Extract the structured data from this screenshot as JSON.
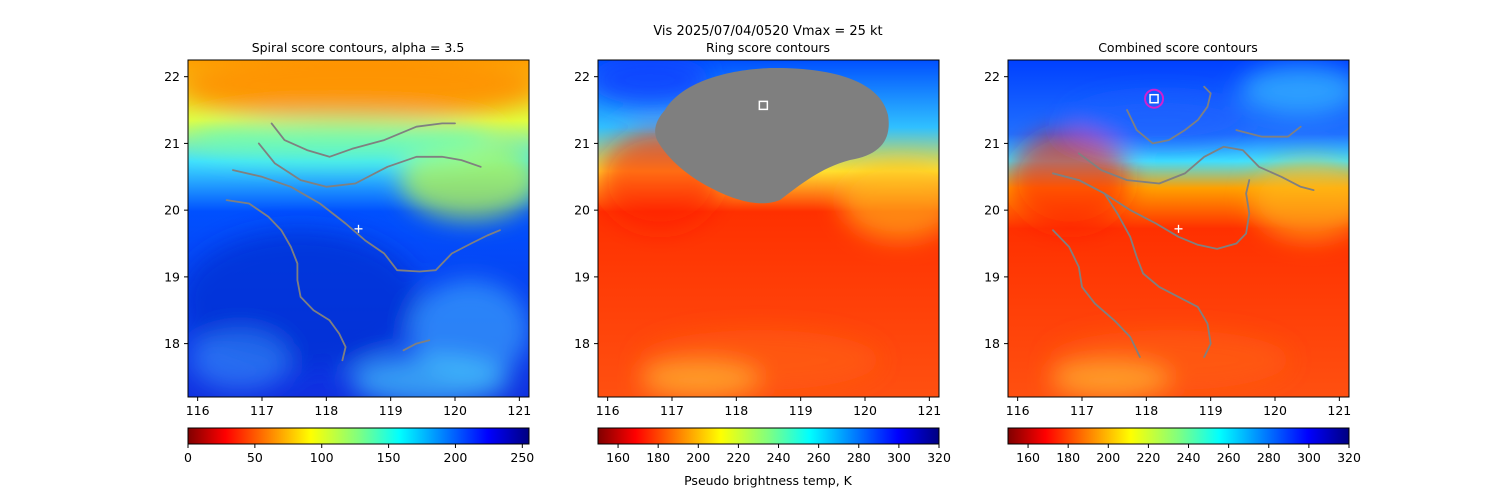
{
  "suptitle": "Vis  2025/07/04/0520    Vmax = 25 kt",
  "colorbar_label": "Pseudo brightness temp, K",
  "chart_data": [
    {
      "type": "heatmap",
      "title": "Spiral score contours, alpha =  3.5",
      "xlim": [
        115.85,
        121.15
      ],
      "ylim": [
        17.2,
        22.25
      ],
      "xticks": [
        "116",
        "117",
        "118",
        "119",
        "120",
        "121"
      ],
      "yticks": [
        "18",
        "19",
        "20",
        "21",
        "22"
      ],
      "colormap": "jet_reversed",
      "colorbar": {
        "ticks": [
          "0",
          "50",
          "100",
          "150",
          "200",
          "250"
        ],
        "range": [
          0,
          255
        ]
      },
      "center_marker": {
        "shape": "plus",
        "x": 118.5,
        "y": 19.72,
        "color": "#ffffff"
      },
      "contours": [
        {
          "color": "#808080",
          "points": [
            [
              117.15,
              21.3
            ],
            [
              117.35,
              21.05
            ],
            [
              117.7,
              20.9
            ],
            [
              118.05,
              20.8
            ],
            [
              118.4,
              20.92
            ],
            [
              118.9,
              21.05
            ],
            [
              119.4,
              21.25
            ],
            [
              119.8,
              21.3
            ],
            [
              120.0,
              21.3
            ]
          ]
        },
        {
          "color": "#808080",
          "points": [
            [
              116.95,
              21.0
            ],
            [
              117.2,
              20.7
            ],
            [
              117.6,
              20.45
            ],
            [
              118.0,
              20.35
            ],
            [
              118.45,
              20.4
            ],
            [
              118.95,
              20.65
            ],
            [
              119.4,
              20.8
            ],
            [
              119.8,
              20.8
            ],
            [
              120.1,
              20.75
            ],
            [
              120.4,
              20.65
            ]
          ]
        },
        {
          "color": "#808080",
          "points": [
            [
              116.55,
              20.6
            ],
            [
              117.0,
              20.5
            ],
            [
              117.45,
              20.35
            ],
            [
              117.9,
              20.1
            ],
            [
              118.3,
              19.8
            ],
            [
              118.6,
              19.55
            ],
            [
              118.9,
              19.35
            ],
            [
              119.1,
              19.1
            ],
            [
              119.45,
              19.08
            ],
            [
              119.7,
              19.1
            ],
            [
              119.95,
              19.35
            ],
            [
              120.25,
              19.5
            ],
            [
              120.5,
              19.62
            ],
            [
              120.7,
              19.7
            ]
          ]
        },
        {
          "color": "#808080",
          "points": [
            [
              116.45,
              20.15
            ],
            [
              116.8,
              20.1
            ],
            [
              117.1,
              19.9
            ],
            [
              117.3,
              19.7
            ],
            [
              117.45,
              19.45
            ],
            [
              117.55,
              19.2
            ],
            [
              117.55,
              18.95
            ],
            [
              117.6,
              18.7
            ],
            [
              117.8,
              18.5
            ],
            [
              118.05,
              18.35
            ],
            [
              118.2,
              18.15
            ],
            [
              118.3,
              17.95
            ],
            [
              118.25,
              17.75
            ]
          ]
        },
        {
          "color": "#808080",
          "points": [
            [
              119.2,
              17.9
            ],
            [
              119.4,
              18.0
            ],
            [
              119.6,
              18.05
            ]
          ]
        }
      ]
    },
    {
      "type": "heatmap",
      "title": "Ring score contours",
      "xlim": [
        115.85,
        121.15
      ],
      "ylim": [
        17.2,
        22.25
      ],
      "xticks": [
        "116",
        "117",
        "118",
        "119",
        "120",
        "121"
      ],
      "yticks": [
        "18",
        "19",
        "20",
        "21",
        "22"
      ],
      "colormap": "jet",
      "colorbar": {
        "ticks": [
          "160",
          "180",
          "200",
          "220",
          "240",
          "260",
          "280",
          "300",
          "320"
        ],
        "range": [
          150,
          320
        ]
      },
      "square_marker": {
        "x": 118.42,
        "y": 21.57,
        "color": "#ffffff"
      },
      "masked_region_color": "#7f7f7f"
    },
    {
      "type": "heatmap",
      "title": "Combined score contours",
      "xlim": [
        115.85,
        121.15
      ],
      "ylim": [
        17.2,
        22.25
      ],
      "xticks": [
        "116",
        "117",
        "118",
        "119",
        "120",
        "121"
      ],
      "yticks": [
        "18",
        "19",
        "20",
        "21",
        "22"
      ],
      "colormap": "jet",
      "colorbar": {
        "ticks": [
          "160",
          "180",
          "200",
          "220",
          "240",
          "260",
          "280",
          "300",
          "320"
        ],
        "range": [
          150,
          320
        ]
      },
      "center_marker": {
        "shape": "plus",
        "x": 118.5,
        "y": 19.72,
        "color": "#ffffff"
      },
      "square_marker": {
        "x": 118.12,
        "y": 21.67,
        "color": "#ffffff"
      },
      "circle_marker": {
        "x": 118.12,
        "y": 21.67,
        "color": "#d020d0"
      },
      "contours": [
        {
          "color": "#808080",
          "points": [
            [
              117.7,
              21.5
            ],
            [
              117.85,
              21.2
            ],
            [
              118.1,
              21.0
            ],
            [
              118.35,
              21.05
            ],
            [
              118.6,
              21.2
            ],
            [
              118.8,
              21.35
            ],
            [
              118.95,
              21.55
            ],
            [
              119.0,
              21.75
            ],
            [
              118.9,
              21.85
            ]
          ]
        },
        {
          "color": "#808080",
          "points": [
            [
              119.4,
              21.2
            ],
            [
              119.8,
              21.1
            ],
            [
              120.2,
              21.1
            ],
            [
              120.4,
              21.25
            ]
          ]
        },
        {
          "color": "#808080",
          "points": [
            [
              116.95,
              20.85
            ],
            [
              117.3,
              20.6
            ],
            [
              117.7,
              20.45
            ],
            [
              118.2,
              20.4
            ],
            [
              118.6,
              20.55
            ],
            [
              118.9,
              20.8
            ],
            [
              119.2,
              20.95
            ],
            [
              119.5,
              20.9
            ],
            [
              119.75,
              20.65
            ],
            [
              120.1,
              20.5
            ],
            [
              120.4,
              20.35
            ],
            [
              120.6,
              20.3
            ]
          ]
        },
        {
          "color": "#808080",
          "points": [
            [
              116.55,
              20.55
            ],
            [
              116.95,
              20.45
            ],
            [
              117.35,
              20.25
            ],
            [
              117.75,
              20.0
            ],
            [
              118.15,
              19.8
            ],
            [
              118.5,
              19.6
            ],
            [
              118.8,
              19.48
            ],
            [
              119.1,
              19.42
            ],
            [
              119.4,
              19.5
            ],
            [
              119.55,
              19.65
            ],
            [
              119.6,
              19.95
            ],
            [
              119.55,
              20.25
            ],
            [
              119.6,
              20.45
            ]
          ]
        },
        {
          "color": "#808080",
          "points": [
            [
              116.55,
              20.55
            ],
            [
              116.95,
              20.45
            ],
            [
              117.35,
              20.25
            ],
            [
              117.55,
              19.95
            ],
            [
              117.75,
              19.6
            ],
            [
              117.85,
              19.3
            ],
            [
              117.95,
              19.05
            ],
            [
              118.2,
              18.85
            ],
            [
              118.5,
              18.7
            ],
            [
              118.8,
              18.55
            ],
            [
              118.95,
              18.3
            ],
            [
              119.0,
              18.0
            ],
            [
              118.9,
              17.8
            ]
          ]
        },
        {
          "color": "#808080",
          "points": [
            [
              116.55,
              19.7
            ],
            [
              116.8,
              19.45
            ],
            [
              116.95,
              19.15
            ],
            [
              117.0,
              18.85
            ],
            [
              117.2,
              18.6
            ],
            [
              117.5,
              18.35
            ],
            [
              117.75,
              18.1
            ],
            [
              117.9,
              17.8
            ]
          ]
        }
      ]
    }
  ]
}
